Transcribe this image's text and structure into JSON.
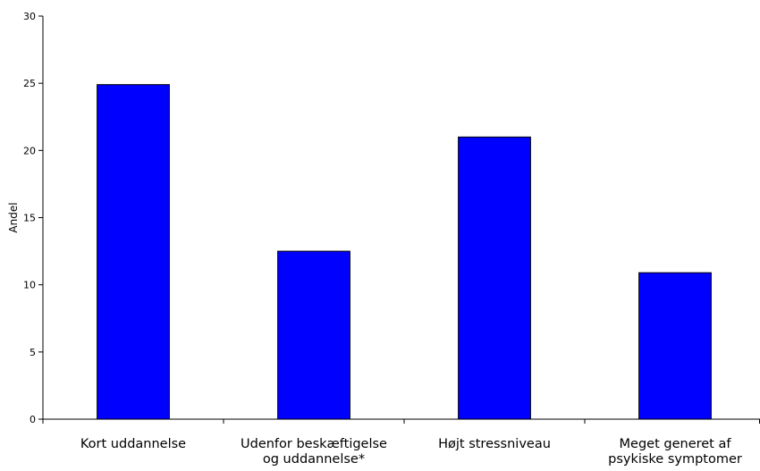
{
  "chart_data": {
    "type": "bar",
    "title": "",
    "xlabel": "",
    "ylabel": "Andel",
    "ylim": [
      0,
      30
    ],
    "yticks": [
      0,
      5,
      10,
      15,
      20,
      25,
      30
    ],
    "ytick_labels": [
      "0",
      "5",
      "10",
      "15",
      "20",
      "25",
      "30"
    ],
    "categories": [
      [
        "Kort uddannelse"
      ],
      [
        "Udenfor beskæftigelse",
        "og uddannelse*"
      ],
      [
        "Højt stressniveau"
      ],
      [
        "Meget generet af",
        "psykiske symptomer"
      ]
    ],
    "values": [
      24.9,
      12.5,
      21.0,
      10.9
    ],
    "grid": false,
    "legend": "none",
    "colors": {
      "bar_fill": "#0000ff",
      "bar_stroke": "#000000",
      "axis": "#000000"
    }
  }
}
